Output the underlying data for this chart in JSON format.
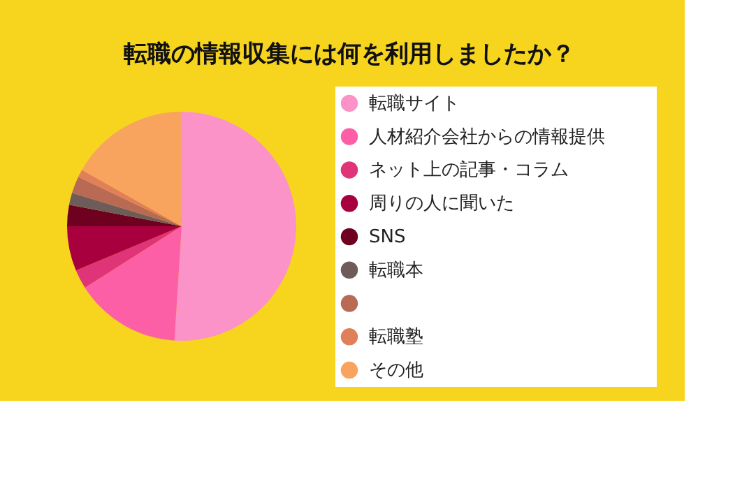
{
  "chart_data": {
    "type": "pie",
    "title": "転職の情報収集には何を利用しましたか？",
    "categories": [
      "転職サイト",
      "人材紹介会社からの情報提供",
      "ネット上の記事・コラム",
      "周りの人に聞いた",
      "SNS",
      "転職本",
      null,
      "転職塾",
      "その他"
    ],
    "values": [
      51,
      15,
      2.7,
      6.3,
      3,
      1.7,
      2.4,
      1.1,
      16.8
    ],
    "colors": [
      "#fb92c8",
      "#fd5fa6",
      "#e03478",
      "#a8003f",
      "#6e0020",
      "#6e5c5a",
      "#b86a55",
      "#e0805a",
      "#f8a35e"
    ],
    "legend": "right"
  }
}
